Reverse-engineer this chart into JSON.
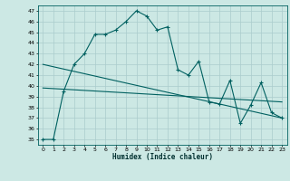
{
  "xlabel": "Humidex (Indice chaleur)",
  "ylabel": "",
  "bg_color": "#cce8e4",
  "grid_color": "#aacccc",
  "line_color": "#006060",
  "xlim": [
    -0.5,
    23.5
  ],
  "ylim": [
    34.5,
    47.5
  ],
  "yticks": [
    35,
    36,
    37,
    38,
    39,
    40,
    41,
    42,
    43,
    44,
    45,
    46,
    47
  ],
  "xticks": [
    0,
    1,
    2,
    3,
    4,
    5,
    6,
    7,
    8,
    9,
    10,
    11,
    12,
    13,
    14,
    15,
    16,
    17,
    18,
    19,
    20,
    21,
    22,
    23
  ],
  "main_x": [
    0,
    1,
    2,
    3,
    4,
    5,
    6,
    7,
    8,
    9,
    10,
    11,
    12,
    13,
    14,
    15,
    16,
    17,
    18,
    19,
    20,
    21,
    22,
    23
  ],
  "main_y": [
    35,
    35,
    39.5,
    42,
    43,
    44.8,
    44.8,
    45.2,
    46,
    47,
    46.5,
    45.2,
    45.5,
    41.5,
    41.0,
    42.3,
    38.5,
    38.3,
    40.5,
    36.5,
    38.2,
    40.3,
    37.5,
    37.0
  ],
  "trend1_x": [
    0,
    23
  ],
  "trend1_y": [
    42.0,
    37.0
  ],
  "trend2_x": [
    0,
    23
  ],
  "trend2_y": [
    39.8,
    38.5
  ]
}
